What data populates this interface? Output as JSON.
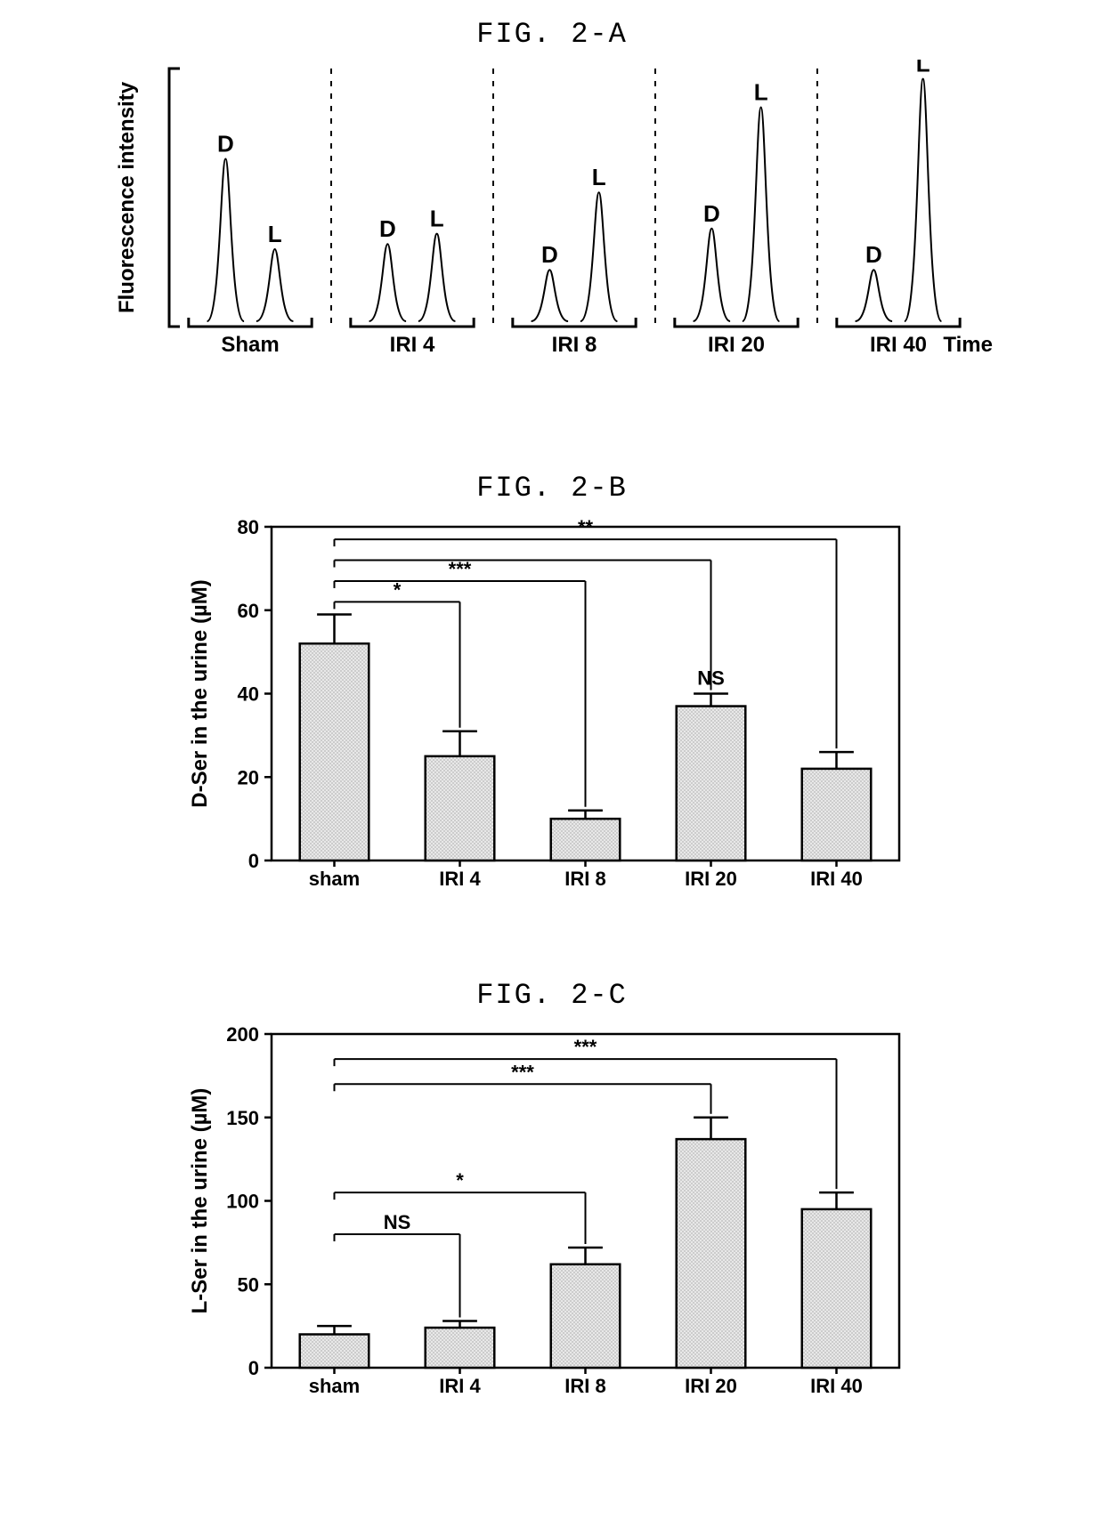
{
  "panelA": {
    "title": "FIG. 2-A",
    "type": "chromatogram-peaks",
    "y_label": "Fluorescence intensity",
    "x_label": "Time",
    "y_range": [
      0,
      100
    ],
    "groups": [
      {
        "name": "Sham",
        "peaks": [
          {
            "label": "D",
            "height": 65
          },
          {
            "label": "L",
            "height": 30
          }
        ]
      },
      {
        "name": "IRI 4",
        "peaks": [
          {
            "label": "D",
            "height": 32
          },
          {
            "label": "L",
            "height": 36
          }
        ]
      },
      {
        "name": "IRI 8",
        "peaks": [
          {
            "label": "D",
            "height": 22
          },
          {
            "label": "L",
            "height": 52
          }
        ]
      },
      {
        "name": "IRI 20",
        "peaks": [
          {
            "label": "D",
            "height": 38
          },
          {
            "label": "L",
            "height": 85
          }
        ]
      },
      {
        "name": "IRI 40",
        "peaks": [
          {
            "label": "D",
            "height": 22
          },
          {
            "label": "L",
            "height": 96
          }
        ]
      }
    ],
    "stroke_color": "#000000",
    "stroke_width": 2,
    "label_fontsize": 26,
    "axis_fontsize": 24
  },
  "panelB": {
    "title": "FIG. 2-B",
    "type": "bar",
    "y_label": "D-Ser in the urine (µM)",
    "categories": [
      "sham",
      "IRI 4",
      "IRI 8",
      "IRI 20",
      "IRI 40"
    ],
    "values": [
      52,
      25,
      10,
      37,
      22
    ],
    "errors": [
      7,
      6,
      2,
      3,
      4
    ],
    "ylim": [
      0,
      80
    ],
    "ytick_step": 20,
    "bar_fill": "#c8c8c8",
    "bar_stroke": "#000000",
    "bar_width": 0.55,
    "significance": [
      {
        "from": 0,
        "to": 1,
        "label": "*",
        "y": 62,
        "drop": true
      },
      {
        "from": 0,
        "to": 2,
        "label": "***",
        "y": 67,
        "drop": true
      },
      {
        "from": 0,
        "to": 3,
        "label": "NS",
        "y": 72,
        "drop": true,
        "ns_at_bar": true
      },
      {
        "from": 0,
        "to": 4,
        "label": "**",
        "y": 77,
        "drop": true
      }
    ],
    "label_fontsize": 24,
    "tick_fontsize": 22,
    "sig_fontsize": 22
  },
  "panelC": {
    "title": "FIG. 2-C",
    "type": "bar",
    "y_label": "L-Ser in the urine (µM)",
    "categories": [
      "sham",
      "IRI 4",
      "IRI 8",
      "IRI 20",
      "IRI 40"
    ],
    "values": [
      20,
      24,
      62,
      137,
      95
    ],
    "errors": [
      5,
      4,
      10,
      13,
      10
    ],
    "ylim": [
      0,
      200
    ],
    "ytick_step": 50,
    "bar_fill": "#c8c8c8",
    "bar_stroke": "#000000",
    "bar_width": 0.55,
    "significance": [
      {
        "from": 0,
        "to": 1,
        "label": "NS",
        "y": 80,
        "drop": true,
        "show_at_line": true
      },
      {
        "from": 0,
        "to": 2,
        "label": "*",
        "y": 105,
        "drop": true
      },
      {
        "from": 0,
        "to": 3,
        "label": "***",
        "y": 170,
        "drop": true
      },
      {
        "from": 0,
        "to": 4,
        "label": "***",
        "y": 185,
        "drop": true
      }
    ],
    "label_fontsize": 24,
    "tick_fontsize": 22,
    "sig_fontsize": 22
  }
}
